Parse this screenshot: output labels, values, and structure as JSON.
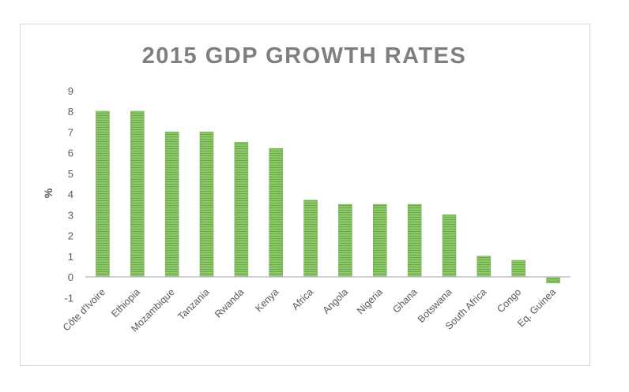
{
  "chart_data": {
    "type": "bar",
    "title": "2015 GDP GROWTH RATES",
    "xlabel": "",
    "ylabel": "%",
    "ylim": [
      -1,
      9
    ],
    "yticks": [
      -1,
      0,
      1,
      2,
      3,
      4,
      5,
      6,
      7,
      8,
      9
    ],
    "grid": false,
    "legend": "none",
    "bar_color": "#8cc866",
    "bar_stripe_color": "#6aa84f",
    "axis_color": "#bfbfbf",
    "categories": [
      "Côte d'Ivoire",
      "Ethiopia",
      "Mozambique",
      "Tanzania",
      "Rwanda",
      "Kenya",
      "Africa",
      "Angola",
      "Nigeria",
      "Ghana",
      "Botswana",
      "South Africa",
      "Congo",
      "Eq. Guinea"
    ],
    "values": [
      8.0,
      8.0,
      7.0,
      7.0,
      6.5,
      6.2,
      3.7,
      3.5,
      3.5,
      3.5,
      3.0,
      1.0,
      0.8,
      -0.3
    ]
  }
}
